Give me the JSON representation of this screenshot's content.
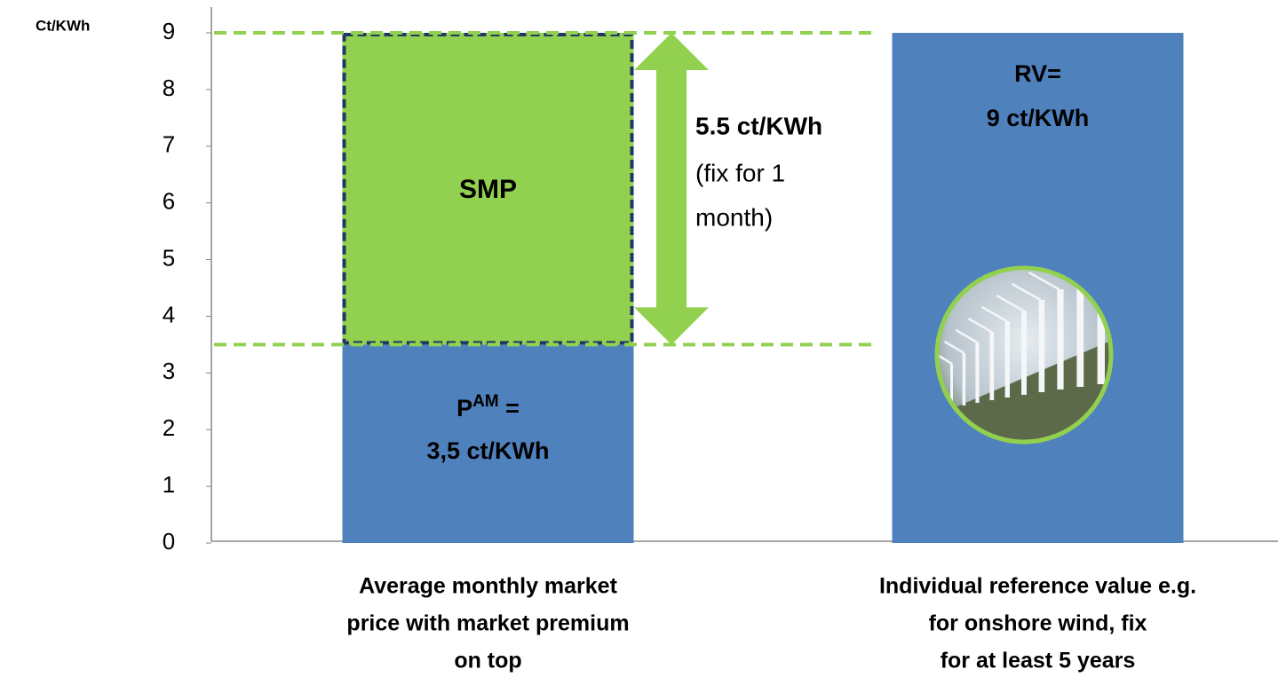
{
  "chart_data": {
    "type": "bar",
    "stacked": true,
    "y_label": "Ct/KWh",
    "categories": [
      [
        "Average monthly market",
        "price with market premium",
        "on top"
      ],
      [
        "Individual reference value e.g.",
        "for onshore wind, fix",
        "for at least 5 years"
      ]
    ],
    "series": [
      {
        "color": "#4f81bd",
        "values": [
          3.5,
          9
        ]
      },
      {
        "color": "#92d050",
        "values": [
          5.5,
          null
        ]
      }
    ],
    "ylim": [
      0,
      9
    ],
    "yticks": [
      0,
      1,
      2,
      3,
      4,
      5,
      6,
      7,
      8,
      9
    ],
    "annotations": {
      "pam_symbol": "P",
      "pam_superscript": "AM",
      "pam_equals": " =",
      "pam_value": "3,5 ct/KWh",
      "smp": "SMP",
      "premium_value": "5.5 ct/KWh",
      "premium_note": [
        "(fix for 1",
        "month)"
      ],
      "rv_label": "RV=",
      "rv_value": "9 ct/KWh"
    }
  }
}
